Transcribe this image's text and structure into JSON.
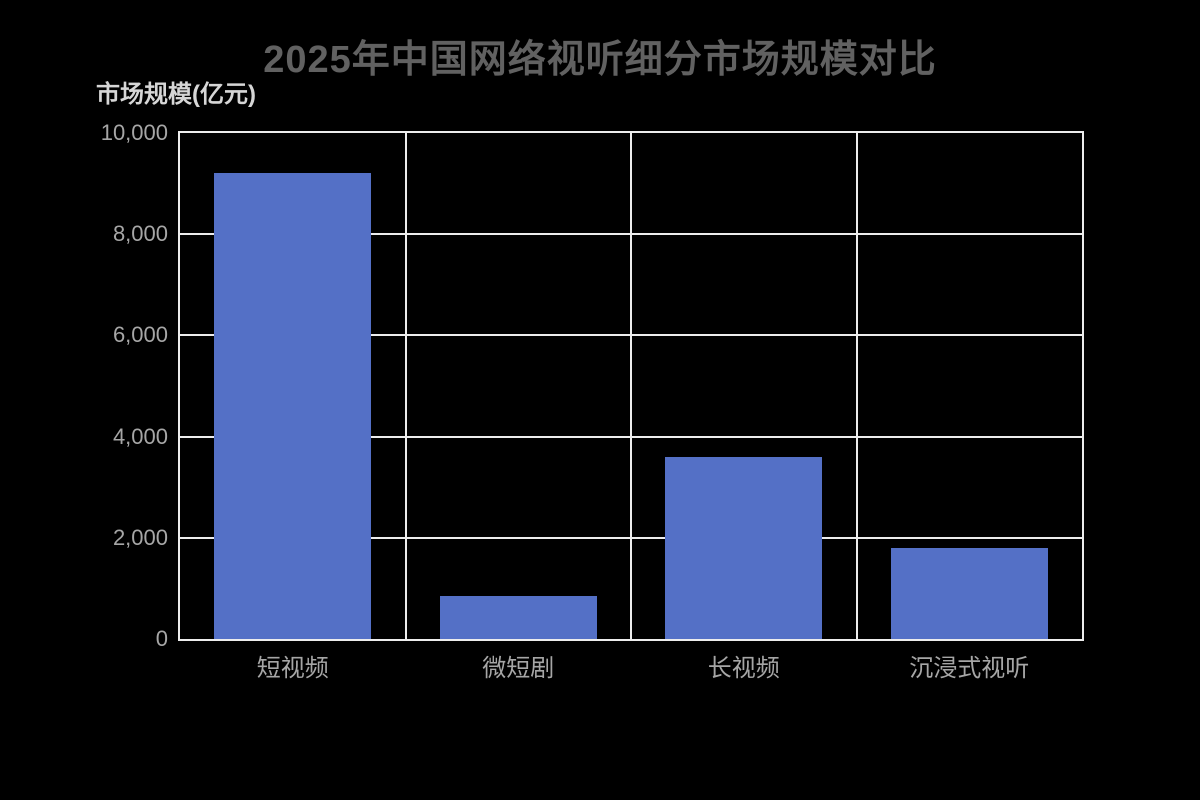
{
  "colors": {
    "background": "#000000",
    "bar": "#5470c6",
    "gridline": "#ededed",
    "title_text": "#616161",
    "axis_title_text": "#d6d6d6",
    "tick_label_text": "#a6a6a6"
  },
  "chart_data": {
    "type": "bar",
    "title": "2025年中国网络视听细分市场规模对比",
    "ylabel": "市场规模(亿元)",
    "xlabel": "",
    "categories": [
      "短视频",
      "微短剧",
      "长视频",
      "沉浸式视听"
    ],
    "values": [
      9200,
      850,
      3600,
      1800
    ],
    "ylim": [
      0,
      10000
    ],
    "ytick_interval": 2000,
    "ytick_labels": [
      "0",
      "2,000",
      "4,000",
      "6,000",
      "8,000",
      "10,000"
    ],
    "grid": true,
    "legend": "none",
    "bar_width_fraction": 0.695
  }
}
